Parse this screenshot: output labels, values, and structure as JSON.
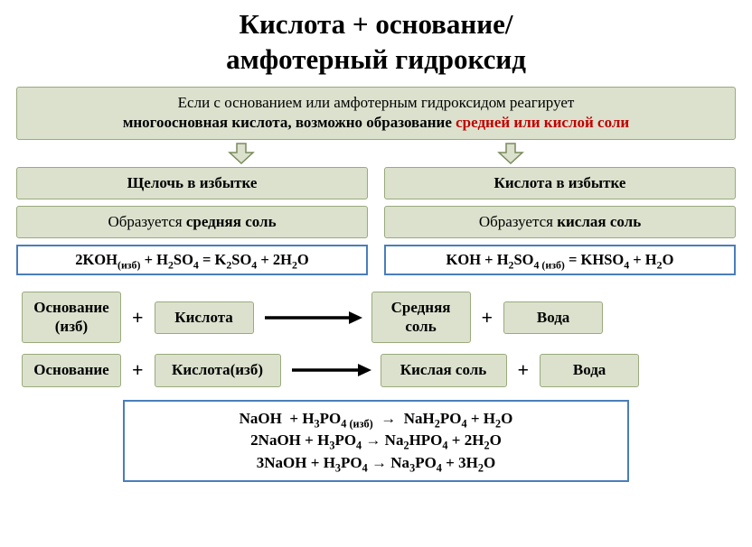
{
  "title_l1": "Кислота + основание/",
  "title_l2": "амфотерный гидроксид",
  "intro_pre": "Если с основанием или амфотерным гидроксидом реагирует",
  "intro_mid": "многоосновная кислота, возможно образование ",
  "intro_red": "средней или кислой соли",
  "left": {
    "header": "Щелочь в избытке",
    "result_pre": "Образуется ",
    "result_bold": "средняя соль",
    "eq_html": "2KOH<sub>(изб)</sub> + H<sub>2</sub>SO<sub>4</sub> = K<sub>2</sub>SO<sub>4</sub> + 2H<sub>2</sub>O"
  },
  "right": {
    "header": "Кислота в избытке",
    "result_pre": "Образуется ",
    "result_bold": "кислая соль",
    "eq_html": "KOH + H<sub>2</sub>SO<sub>4 (изб)</sub> = KHSO<sub>4</sub> + H<sub>2</sub>O"
  },
  "scheme1": {
    "a_l1": "Основание",
    "a_l2": "(изб)",
    "b": "Кислота",
    "c_l1": "Средняя",
    "c_l2": "соль",
    "d": "Вода"
  },
  "scheme2": {
    "a": "Основание",
    "b": "Кислота(изб)",
    "c": "Кислая соль",
    "d": "Вода"
  },
  "examples_html": "NaOH&nbsp; + H<sub>3</sub>PO<sub>4 (изб)</sub>&nbsp;&nbsp;→&nbsp;&nbsp;NaH<sub>2</sub>PO<sub>4</sub> + H<sub>2</sub>O<br>2NaOH + H<sub>3</sub>PO<sub>4</sub> → Na<sub>2</sub>HPO<sub>4</sub> + 2H<sub>2</sub>O<br>3NaOH + H<sub>3</sub>PO<sub>4</sub> → Na<sub>3</sub>PO<sub>4</sub> + 3H<sub>2</sub>O",
  "colors": {
    "box_fill": "#dbe1cd",
    "box_border": "#9aaa7c",
    "blue_border": "#4a7ebb",
    "arrow_fill": "#dbe1cd",
    "arrow_stroke": "#7a8a5c",
    "red": "#c00000",
    "black_arrow": "#000000",
    "bg": "#ffffff"
  }
}
